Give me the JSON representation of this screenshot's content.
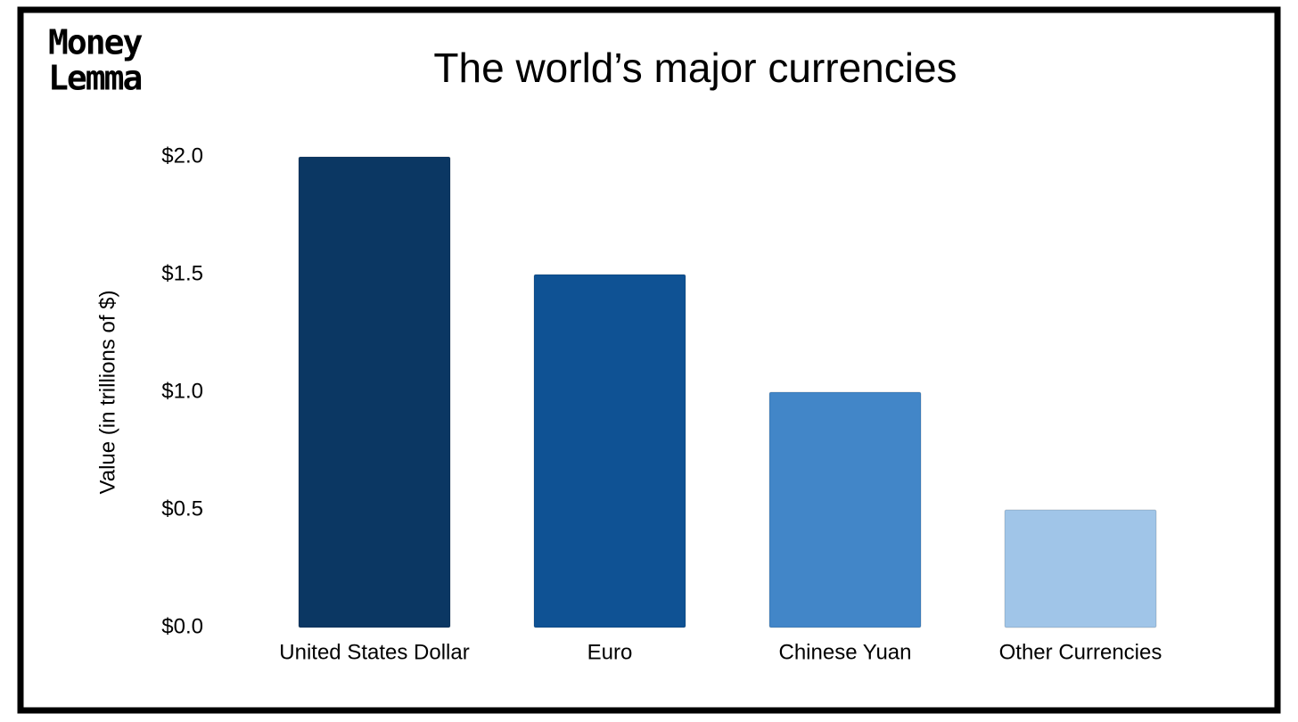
{
  "brand": {
    "line1": "Money",
    "line2": "Lemma"
  },
  "chart_data": {
    "type": "bar",
    "title": "The world’s major currencies",
    "y_label": "Value (in trillions of $)",
    "categories": [
      "United States Dollar",
      "Euro",
      "Chinese Yuan",
      "Other Currencies"
    ],
    "values": [
      2,
      1.5,
      1,
      0.5
    ],
    "colors": [
      "#0b3763",
      "#0f5294",
      "#4286c8",
      "#a0c5e8"
    ],
    "ylim": [
      0,
      2
    ],
    "yticks": [
      {
        "value": 0,
        "label": "$0.0"
      },
      {
        "value": 0.5,
        "label": "$0.5"
      },
      {
        "value": 1,
        "label": "$1.0"
      },
      {
        "value": 1.5,
        "label": "$1.5"
      },
      {
        "value": 2,
        "label": "$2.0"
      }
    ],
    "grid": false
  }
}
